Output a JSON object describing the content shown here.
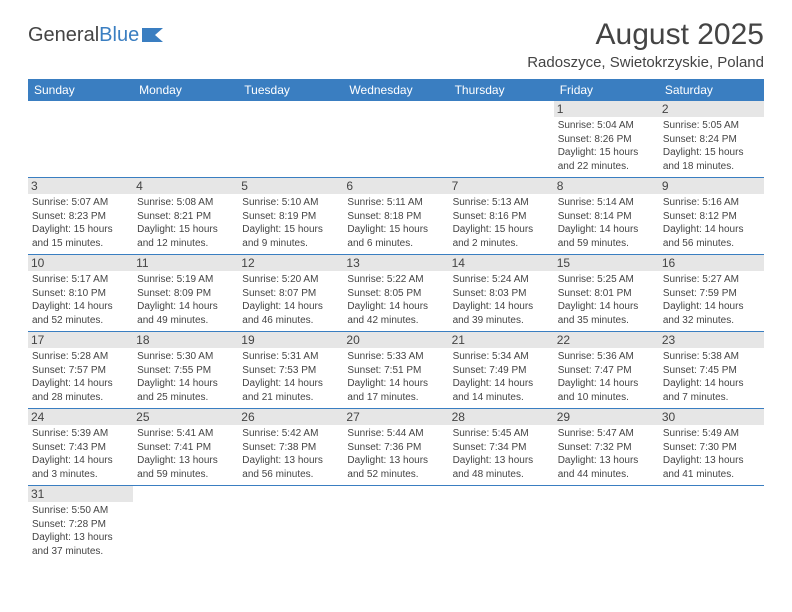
{
  "logo": {
    "text1": "General",
    "text2": "Blue"
  },
  "header": {
    "month_title": "August 2025",
    "location": "Radoszyce, Swietokrzyskie, Poland"
  },
  "colors": {
    "header_bg": "#3a7ec1",
    "header_text": "#ffffff",
    "body_text": "#444444",
    "daynum_bg": "#e6e6e6",
    "border": "#3a7ec1",
    "page_bg": "#ffffff",
    "logo_blue": "#3a7ec1"
  },
  "fonts": {
    "family": "Arial, Helvetica, sans-serif",
    "month_title_size_pt": 22,
    "location_size_pt": 11,
    "weekday_size_pt": 9,
    "daynum_size_pt": 9,
    "cell_text_size_pt": 7.5
  },
  "calendar": {
    "weekdays": [
      "Sunday",
      "Monday",
      "Tuesday",
      "Wednesday",
      "Thursday",
      "Friday",
      "Saturday"
    ],
    "weeks": [
      [
        null,
        null,
        null,
        null,
        null,
        {
          "n": "1",
          "sr": "Sunrise: 5:04 AM",
          "ss": "Sunset: 8:26 PM",
          "dl": "Daylight: 15 hours and 22 minutes."
        },
        {
          "n": "2",
          "sr": "Sunrise: 5:05 AM",
          "ss": "Sunset: 8:24 PM",
          "dl": "Daylight: 15 hours and 18 minutes."
        }
      ],
      [
        {
          "n": "3",
          "sr": "Sunrise: 5:07 AM",
          "ss": "Sunset: 8:23 PM",
          "dl": "Daylight: 15 hours and 15 minutes."
        },
        {
          "n": "4",
          "sr": "Sunrise: 5:08 AM",
          "ss": "Sunset: 8:21 PM",
          "dl": "Daylight: 15 hours and 12 minutes."
        },
        {
          "n": "5",
          "sr": "Sunrise: 5:10 AM",
          "ss": "Sunset: 8:19 PM",
          "dl": "Daylight: 15 hours and 9 minutes."
        },
        {
          "n": "6",
          "sr": "Sunrise: 5:11 AM",
          "ss": "Sunset: 8:18 PM",
          "dl": "Daylight: 15 hours and 6 minutes."
        },
        {
          "n": "7",
          "sr": "Sunrise: 5:13 AM",
          "ss": "Sunset: 8:16 PM",
          "dl": "Daylight: 15 hours and 2 minutes."
        },
        {
          "n": "8",
          "sr": "Sunrise: 5:14 AM",
          "ss": "Sunset: 8:14 PM",
          "dl": "Daylight: 14 hours and 59 minutes."
        },
        {
          "n": "9",
          "sr": "Sunrise: 5:16 AM",
          "ss": "Sunset: 8:12 PM",
          "dl": "Daylight: 14 hours and 56 minutes."
        }
      ],
      [
        {
          "n": "10",
          "sr": "Sunrise: 5:17 AM",
          "ss": "Sunset: 8:10 PM",
          "dl": "Daylight: 14 hours and 52 minutes."
        },
        {
          "n": "11",
          "sr": "Sunrise: 5:19 AM",
          "ss": "Sunset: 8:09 PM",
          "dl": "Daylight: 14 hours and 49 minutes."
        },
        {
          "n": "12",
          "sr": "Sunrise: 5:20 AM",
          "ss": "Sunset: 8:07 PM",
          "dl": "Daylight: 14 hours and 46 minutes."
        },
        {
          "n": "13",
          "sr": "Sunrise: 5:22 AM",
          "ss": "Sunset: 8:05 PM",
          "dl": "Daylight: 14 hours and 42 minutes."
        },
        {
          "n": "14",
          "sr": "Sunrise: 5:24 AM",
          "ss": "Sunset: 8:03 PM",
          "dl": "Daylight: 14 hours and 39 minutes."
        },
        {
          "n": "15",
          "sr": "Sunrise: 5:25 AM",
          "ss": "Sunset: 8:01 PM",
          "dl": "Daylight: 14 hours and 35 minutes."
        },
        {
          "n": "16",
          "sr": "Sunrise: 5:27 AM",
          "ss": "Sunset: 7:59 PM",
          "dl": "Daylight: 14 hours and 32 minutes."
        }
      ],
      [
        {
          "n": "17",
          "sr": "Sunrise: 5:28 AM",
          "ss": "Sunset: 7:57 PM",
          "dl": "Daylight: 14 hours and 28 minutes."
        },
        {
          "n": "18",
          "sr": "Sunrise: 5:30 AM",
          "ss": "Sunset: 7:55 PM",
          "dl": "Daylight: 14 hours and 25 minutes."
        },
        {
          "n": "19",
          "sr": "Sunrise: 5:31 AM",
          "ss": "Sunset: 7:53 PM",
          "dl": "Daylight: 14 hours and 21 minutes."
        },
        {
          "n": "20",
          "sr": "Sunrise: 5:33 AM",
          "ss": "Sunset: 7:51 PM",
          "dl": "Daylight: 14 hours and 17 minutes."
        },
        {
          "n": "21",
          "sr": "Sunrise: 5:34 AM",
          "ss": "Sunset: 7:49 PM",
          "dl": "Daylight: 14 hours and 14 minutes."
        },
        {
          "n": "22",
          "sr": "Sunrise: 5:36 AM",
          "ss": "Sunset: 7:47 PM",
          "dl": "Daylight: 14 hours and 10 minutes."
        },
        {
          "n": "23",
          "sr": "Sunrise: 5:38 AM",
          "ss": "Sunset: 7:45 PM",
          "dl": "Daylight: 14 hours and 7 minutes."
        }
      ],
      [
        {
          "n": "24",
          "sr": "Sunrise: 5:39 AM",
          "ss": "Sunset: 7:43 PM",
          "dl": "Daylight: 14 hours and 3 minutes."
        },
        {
          "n": "25",
          "sr": "Sunrise: 5:41 AM",
          "ss": "Sunset: 7:41 PM",
          "dl": "Daylight: 13 hours and 59 minutes."
        },
        {
          "n": "26",
          "sr": "Sunrise: 5:42 AM",
          "ss": "Sunset: 7:38 PM",
          "dl": "Daylight: 13 hours and 56 minutes."
        },
        {
          "n": "27",
          "sr": "Sunrise: 5:44 AM",
          "ss": "Sunset: 7:36 PM",
          "dl": "Daylight: 13 hours and 52 minutes."
        },
        {
          "n": "28",
          "sr": "Sunrise: 5:45 AM",
          "ss": "Sunset: 7:34 PM",
          "dl": "Daylight: 13 hours and 48 minutes."
        },
        {
          "n": "29",
          "sr": "Sunrise: 5:47 AM",
          "ss": "Sunset: 7:32 PM",
          "dl": "Daylight: 13 hours and 44 minutes."
        },
        {
          "n": "30",
          "sr": "Sunrise: 5:49 AM",
          "ss": "Sunset: 7:30 PM",
          "dl": "Daylight: 13 hours and 41 minutes."
        }
      ],
      [
        {
          "n": "31",
          "sr": "Sunrise: 5:50 AM",
          "ss": "Sunset: 7:28 PM",
          "dl": "Daylight: 13 hours and 37 minutes."
        },
        null,
        null,
        null,
        null,
        null,
        null
      ]
    ]
  }
}
